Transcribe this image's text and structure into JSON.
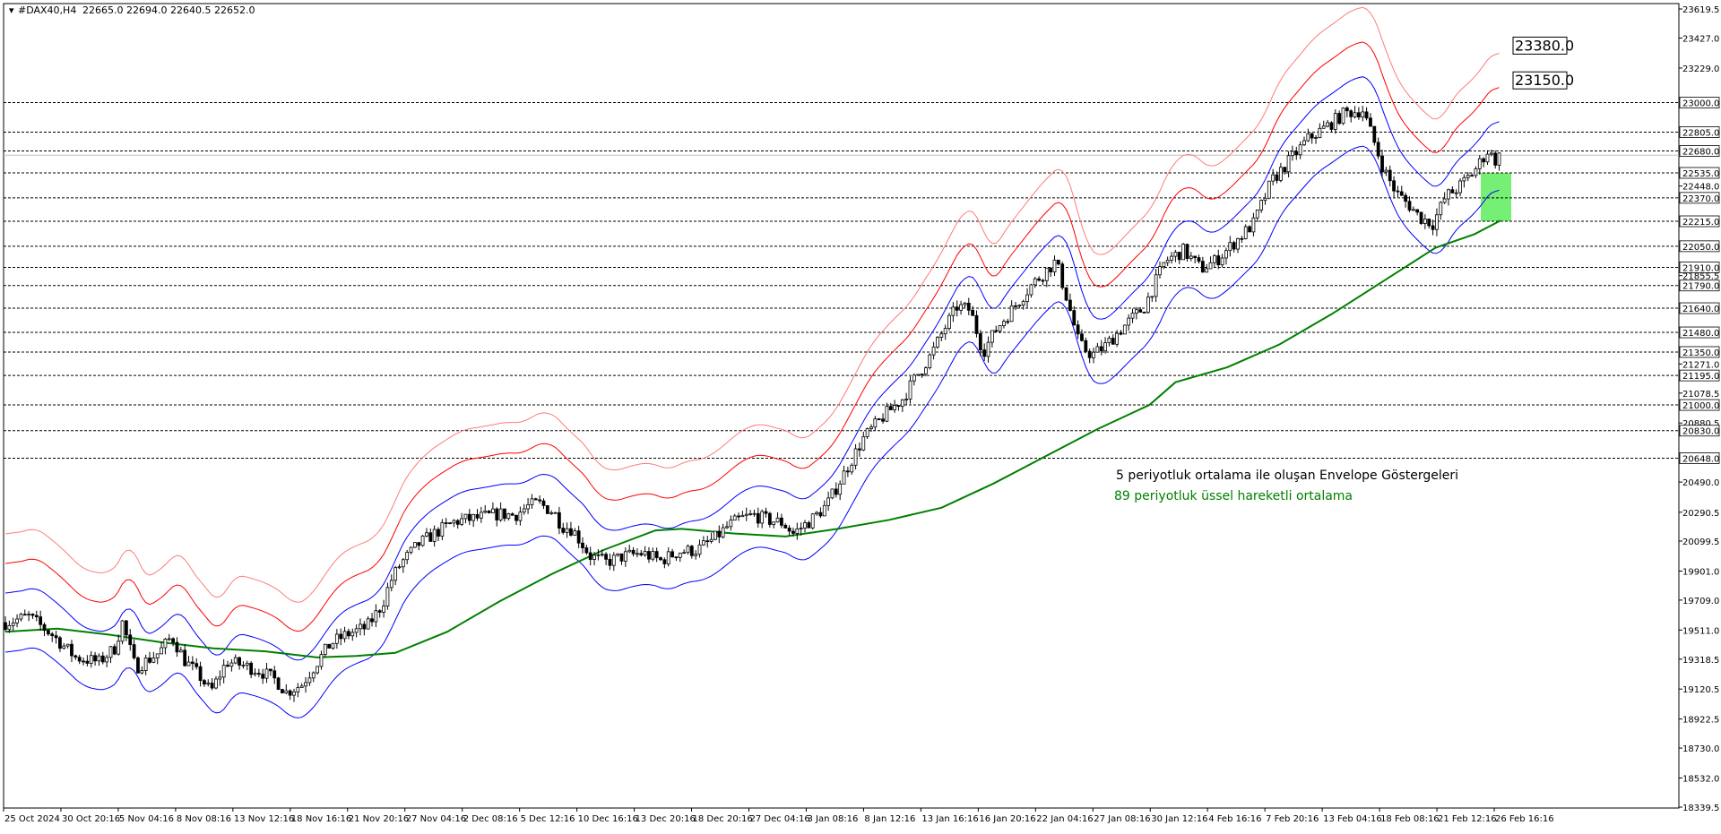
{
  "chart_data": {
    "type": "candlestick",
    "symbol_header": "#DAX40,H4",
    "ohlc_header": "22665.0 22694.0 22640.5 22652.0",
    "ylim": [
      18339.5,
      23619.5
    ],
    "price_ticks": [
      "23619.5",
      "23427.0",
      "23229.0",
      "23000.0",
      "22805.0",
      "22680.0",
      "22535.0",
      "22448.0",
      "22370.0",
      "22215.0",
      "22050.0",
      "21910.0",
      "21855.5",
      "21790.0",
      "21640.0",
      "21480.0",
      "21350.0",
      "21271.0",
      "21195.0",
      "21078.5",
      "21000.0",
      "20880.5",
      "20830.0",
      "20648.0",
      "20490.0",
      "20290.5",
      "20099.5",
      "19901.0",
      "19709.0",
      "19511.0",
      "19318.5",
      "19120.5",
      "18922.5",
      "18730.0",
      "18532.0",
      "18339.5"
    ],
    "highlighted_levels": [
      "23000.0",
      "22805.0",
      "22680.0",
      "22535.0",
      "22370.0",
      "22215.0",
      "22050.0",
      "21910.0",
      "21790.0",
      "21640.0",
      "21480.0",
      "21350.0",
      "21195.0",
      "21000.0",
      "20830.0",
      "20648.0"
    ],
    "time_labels": [
      "25 Oct 2024",
      "30 Oct 20:16",
      "5 Nov 04:16",
      "8 Nov 08:16",
      "13 Nov 12:16",
      "18 Nov 16:16",
      "21 Nov 20:16",
      "27 Nov 04:16",
      "2 Dec 08:16",
      "5 Dec 12:16",
      "10 Dec 16:16",
      "13 Dec 20:16",
      "18 Dec 20:16",
      "27 Dec 04:16",
      "3 Jan 08:16",
      "8 Jan 12:16",
      "13 Jan 16:16",
      "16 Jan 20:16",
      "22 Jan 04:16",
      "27 Jan 08:16",
      "30 Jan 12:16",
      "4 Feb 16:16",
      "7 Feb 20:16",
      "13 Feb 04:16",
      "18 Feb 08:16",
      "21 Feb 12:16",
      "26 Feb 16:16"
    ],
    "close_path": [
      [
        0,
        19560
      ],
      [
        18,
        19600
      ],
      [
        36,
        19480
      ],
      [
        54,
        19330
      ],
      [
        72,
        19300
      ],
      [
        84,
        19390
      ],
      [
        90,
        19560
      ],
      [
        100,
        19260
      ],
      [
        118,
        19360
      ],
      [
        128,
        19470
      ],
      [
        138,
        19310
      ],
      [
        150,
        19200
      ],
      [
        158,
        19100
      ],
      [
        170,
        19300
      ],
      [
        182,
        19280
      ],
      [
        196,
        19240
      ],
      [
        208,
        19180
      ],
      [
        216,
        19100
      ],
      [
        228,
        19150
      ],
      [
        240,
        19300
      ],
      [
        250,
        19420
      ],
      [
        262,
        19480
      ],
      [
        278,
        19530
      ],
      [
        290,
        19680
      ],
      [
        296,
        19830
      ],
      [
        304,
        19950
      ],
      [
        318,
        20080
      ],
      [
        332,
        20160
      ],
      [
        346,
        20230
      ],
      [
        362,
        20250
      ],
      [
        380,
        20280
      ],
      [
        392,
        20270
      ],
      [
        402,
        20330
      ],
      [
        410,
        20350
      ],
      [
        422,
        20290
      ],
      [
        428,
        20200
      ],
      [
        436,
        20180
      ],
      [
        450,
        20000
      ],
      [
        462,
        19960
      ],
      [
        476,
        20000
      ],
      [
        490,
        20020
      ],
      [
        504,
        19970
      ],
      [
        518,
        20030
      ],
      [
        532,
        20040
      ],
      [
        546,
        20120
      ],
      [
        556,
        20200
      ],
      [
        566,
        20250
      ],
      [
        576,
        20270
      ],
      [
        586,
        20240
      ],
      [
        598,
        20220
      ],
      [
        606,
        20150
      ],
      [
        620,
        20240
      ],
      [
        632,
        20340
      ],
      [
        646,
        20560
      ],
      [
        660,
        20780
      ],
      [
        676,
        20930
      ],
      [
        690,
        21040
      ],
      [
        700,
        21180
      ],
      [
        712,
        21330
      ],
      [
        722,
        21500
      ],
      [
        732,
        21650
      ],
      [
        742,
        21630
      ],
      [
        752,
        21350
      ],
      [
        762,
        21500
      ],
      [
        776,
        21650
      ],
      [
        790,
        21800
      ],
      [
        808,
        21950
      ],
      [
        816,
        21720
      ],
      [
        826,
        21400
      ],
      [
        836,
        21330
      ],
      [
        846,
        21390
      ],
      [
        858,
        21500
      ],
      [
        876,
        21650
      ],
      [
        892,
        21950
      ],
      [
        906,
        22020
      ],
      [
        920,
        21900
      ],
      [
        932,
        21960
      ],
      [
        946,
        22080
      ],
      [
        960,
        22200
      ],
      [
        974,
        22480
      ],
      [
        988,
        22620
      ],
      [
        1002,
        22760
      ],
      [
        1016,
        22840
      ],
      [
        1030,
        22930
      ],
      [
        1044,
        22950
      ],
      [
        1052,
        22760
      ],
      [
        1060,
        22560
      ],
      [
        1070,
        22400
      ],
      [
        1080,
        22320
      ],
      [
        1088,
        22240
      ],
      [
        1098,
        22200
      ],
      [
        1108,
        22380
      ],
      [
        1118,
        22440
      ],
      [
        1130,
        22550
      ],
      [
        1140,
        22680
      ],
      [
        1146,
        22620
      ],
      [
        1150,
        22652
      ]
    ],
    "series": [
      {
        "name": "5 periyotluk ortalama ile oluşan Envelope Göstergeleri",
        "color": "#0000ff"
      },
      {
        "name": "89 periyotluk üssel hareketli ortalama",
        "color": "#008000"
      }
    ],
    "ema89_path": [
      [
        0,
        19500
      ],
      [
        40,
        19520
      ],
      [
        80,
        19480
      ],
      [
        120,
        19430
      ],
      [
        160,
        19390
      ],
      [
        200,
        19370
      ],
      [
        240,
        19330
      ],
      [
        270,
        19340
      ],
      [
        300,
        19360
      ],
      [
        340,
        19500
      ],
      [
        380,
        19700
      ],
      [
        420,
        19880
      ],
      [
        460,
        20040
      ],
      [
        500,
        20170
      ],
      [
        520,
        20180
      ],
      [
        560,
        20150
      ],
      [
        600,
        20130
      ],
      [
        640,
        20180
      ],
      [
        680,
        20240
      ],
      [
        720,
        20320
      ],
      [
        760,
        20480
      ],
      [
        800,
        20660
      ],
      [
        840,
        20840
      ],
      [
        880,
        21000
      ],
      [
        900,
        21150
      ],
      [
        940,
        21250
      ],
      [
        980,
        21400
      ],
      [
        1020,
        21600
      ],
      [
        1060,
        21820
      ],
      [
        1100,
        22040
      ],
      [
        1130,
        22130
      ],
      [
        1150,
        22220
      ]
    ],
    "level_boxes": [
      "23380.0",
      "23150.0"
    ],
    "target_zone": {
      "from": 22215.0,
      "to": 22535.0
    },
    "annotations": [
      "5 periyotluk ortalama ile oluşan Envelope Göstergeleri",
      "89 periyotluk üssel hareketli ortalama"
    ],
    "colors": {
      "candles": "#000000",
      "envelope_inner": "#0000ff",
      "envelope_mid": "#ff0000",
      "envelope_outer": "#ff7b7b",
      "ema": "#008000",
      "target_zone": "#66ee66",
      "level_lines": "#000000"
    },
    "envelope_offsets_pct": [
      1,
      2,
      3
    ]
  }
}
